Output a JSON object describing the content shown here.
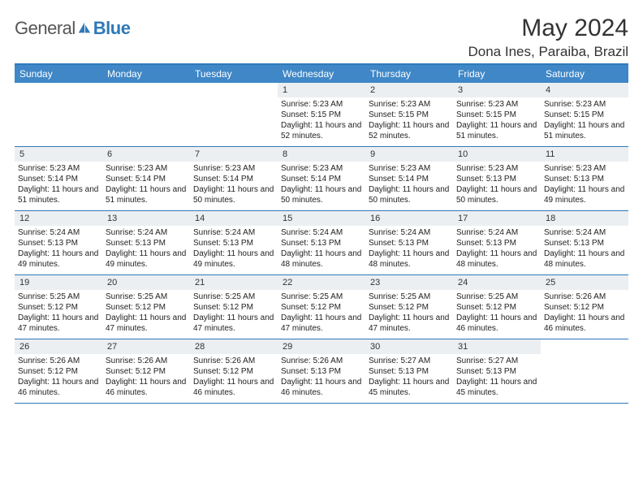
{
  "logo": {
    "general": "General",
    "blue": "Blue"
  },
  "title": "May 2024",
  "location": "Dona Ines, Paraiba, Brazil",
  "weekdays": [
    "Sunday",
    "Monday",
    "Tuesday",
    "Wednesday",
    "Thursday",
    "Friday",
    "Saturday"
  ],
  "colors": {
    "header_bg": "#3f87c7",
    "border": "#2f79b9",
    "daynum_bg": "#eceff1",
    "text": "#222222"
  },
  "weeks": [
    [
      {
        "n": "",
        "sr": "",
        "ss": "",
        "dl": ""
      },
      {
        "n": "",
        "sr": "",
        "ss": "",
        "dl": ""
      },
      {
        "n": "",
        "sr": "",
        "ss": "",
        "dl": ""
      },
      {
        "n": "1",
        "sr": "Sunrise: 5:23 AM",
        "ss": "Sunset: 5:15 PM",
        "dl": "Daylight: 11 hours and 52 minutes."
      },
      {
        "n": "2",
        "sr": "Sunrise: 5:23 AM",
        "ss": "Sunset: 5:15 PM",
        "dl": "Daylight: 11 hours and 52 minutes."
      },
      {
        "n": "3",
        "sr": "Sunrise: 5:23 AM",
        "ss": "Sunset: 5:15 PM",
        "dl": "Daylight: 11 hours and 51 minutes."
      },
      {
        "n": "4",
        "sr": "Sunrise: 5:23 AM",
        "ss": "Sunset: 5:15 PM",
        "dl": "Daylight: 11 hours and 51 minutes."
      }
    ],
    [
      {
        "n": "5",
        "sr": "Sunrise: 5:23 AM",
        "ss": "Sunset: 5:14 PM",
        "dl": "Daylight: 11 hours and 51 minutes."
      },
      {
        "n": "6",
        "sr": "Sunrise: 5:23 AM",
        "ss": "Sunset: 5:14 PM",
        "dl": "Daylight: 11 hours and 51 minutes."
      },
      {
        "n": "7",
        "sr": "Sunrise: 5:23 AM",
        "ss": "Sunset: 5:14 PM",
        "dl": "Daylight: 11 hours and 50 minutes."
      },
      {
        "n": "8",
        "sr": "Sunrise: 5:23 AM",
        "ss": "Sunset: 5:14 PM",
        "dl": "Daylight: 11 hours and 50 minutes."
      },
      {
        "n": "9",
        "sr": "Sunrise: 5:23 AM",
        "ss": "Sunset: 5:14 PM",
        "dl": "Daylight: 11 hours and 50 minutes."
      },
      {
        "n": "10",
        "sr": "Sunrise: 5:23 AM",
        "ss": "Sunset: 5:13 PM",
        "dl": "Daylight: 11 hours and 50 minutes."
      },
      {
        "n": "11",
        "sr": "Sunrise: 5:23 AM",
        "ss": "Sunset: 5:13 PM",
        "dl": "Daylight: 11 hours and 49 minutes."
      }
    ],
    [
      {
        "n": "12",
        "sr": "Sunrise: 5:24 AM",
        "ss": "Sunset: 5:13 PM",
        "dl": "Daylight: 11 hours and 49 minutes."
      },
      {
        "n": "13",
        "sr": "Sunrise: 5:24 AM",
        "ss": "Sunset: 5:13 PM",
        "dl": "Daylight: 11 hours and 49 minutes."
      },
      {
        "n": "14",
        "sr": "Sunrise: 5:24 AM",
        "ss": "Sunset: 5:13 PM",
        "dl": "Daylight: 11 hours and 49 minutes."
      },
      {
        "n": "15",
        "sr": "Sunrise: 5:24 AM",
        "ss": "Sunset: 5:13 PM",
        "dl": "Daylight: 11 hours and 48 minutes."
      },
      {
        "n": "16",
        "sr": "Sunrise: 5:24 AM",
        "ss": "Sunset: 5:13 PM",
        "dl": "Daylight: 11 hours and 48 minutes."
      },
      {
        "n": "17",
        "sr": "Sunrise: 5:24 AM",
        "ss": "Sunset: 5:13 PM",
        "dl": "Daylight: 11 hours and 48 minutes."
      },
      {
        "n": "18",
        "sr": "Sunrise: 5:24 AM",
        "ss": "Sunset: 5:13 PM",
        "dl": "Daylight: 11 hours and 48 minutes."
      }
    ],
    [
      {
        "n": "19",
        "sr": "Sunrise: 5:25 AM",
        "ss": "Sunset: 5:12 PM",
        "dl": "Daylight: 11 hours and 47 minutes."
      },
      {
        "n": "20",
        "sr": "Sunrise: 5:25 AM",
        "ss": "Sunset: 5:12 PM",
        "dl": "Daylight: 11 hours and 47 minutes."
      },
      {
        "n": "21",
        "sr": "Sunrise: 5:25 AM",
        "ss": "Sunset: 5:12 PM",
        "dl": "Daylight: 11 hours and 47 minutes."
      },
      {
        "n": "22",
        "sr": "Sunrise: 5:25 AM",
        "ss": "Sunset: 5:12 PM",
        "dl": "Daylight: 11 hours and 47 minutes."
      },
      {
        "n": "23",
        "sr": "Sunrise: 5:25 AM",
        "ss": "Sunset: 5:12 PM",
        "dl": "Daylight: 11 hours and 47 minutes."
      },
      {
        "n": "24",
        "sr": "Sunrise: 5:25 AM",
        "ss": "Sunset: 5:12 PM",
        "dl": "Daylight: 11 hours and 46 minutes."
      },
      {
        "n": "25",
        "sr": "Sunrise: 5:26 AM",
        "ss": "Sunset: 5:12 PM",
        "dl": "Daylight: 11 hours and 46 minutes."
      }
    ],
    [
      {
        "n": "26",
        "sr": "Sunrise: 5:26 AM",
        "ss": "Sunset: 5:12 PM",
        "dl": "Daylight: 11 hours and 46 minutes."
      },
      {
        "n": "27",
        "sr": "Sunrise: 5:26 AM",
        "ss": "Sunset: 5:12 PM",
        "dl": "Daylight: 11 hours and 46 minutes."
      },
      {
        "n": "28",
        "sr": "Sunrise: 5:26 AM",
        "ss": "Sunset: 5:12 PM",
        "dl": "Daylight: 11 hours and 46 minutes."
      },
      {
        "n": "29",
        "sr": "Sunrise: 5:26 AM",
        "ss": "Sunset: 5:13 PM",
        "dl": "Daylight: 11 hours and 46 minutes."
      },
      {
        "n": "30",
        "sr": "Sunrise: 5:27 AM",
        "ss": "Sunset: 5:13 PM",
        "dl": "Daylight: 11 hours and 45 minutes."
      },
      {
        "n": "31",
        "sr": "Sunrise: 5:27 AM",
        "ss": "Sunset: 5:13 PM",
        "dl": "Daylight: 11 hours and 45 minutes."
      },
      {
        "n": "",
        "sr": "",
        "ss": "",
        "dl": ""
      }
    ]
  ]
}
